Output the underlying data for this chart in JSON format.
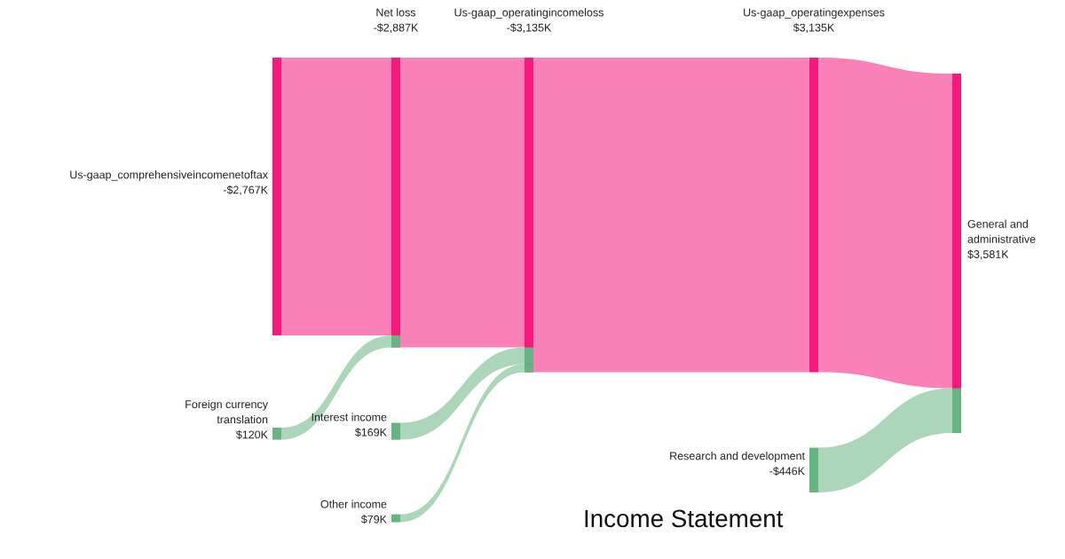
{
  "chart_data": {
    "type": "other",
    "title": "Income Statement",
    "categories": [
      "Us-gaap_comprehensiveincomenetoftax",
      "Foreign currency translation",
      "Net loss",
      "Interest income",
      "Other income",
      "Us-gaap_operatingincomeloss",
      "Us-gaap_operatingexpenses",
      "Research and development",
      "General and administrative"
    ],
    "values": [
      -2767,
      120,
      -2887,
      169,
      79,
      -3135,
      3135,
      -446,
      3581
    ],
    "value_labels": [
      "-$2,767K",
      "$120K",
      "-$2,887K",
      "$169K",
      "$79K",
      "-$3,135K",
      "$3,135K",
      "-$446K",
      "$3,581K"
    ],
    "colors": [
      "#f5197d",
      "#66b482",
      "#f5197d",
      "#66b482",
      "#66b482",
      "#f5197d",
      "#f5197d",
      "#66b482",
      "#f5197d"
    ]
  }
}
